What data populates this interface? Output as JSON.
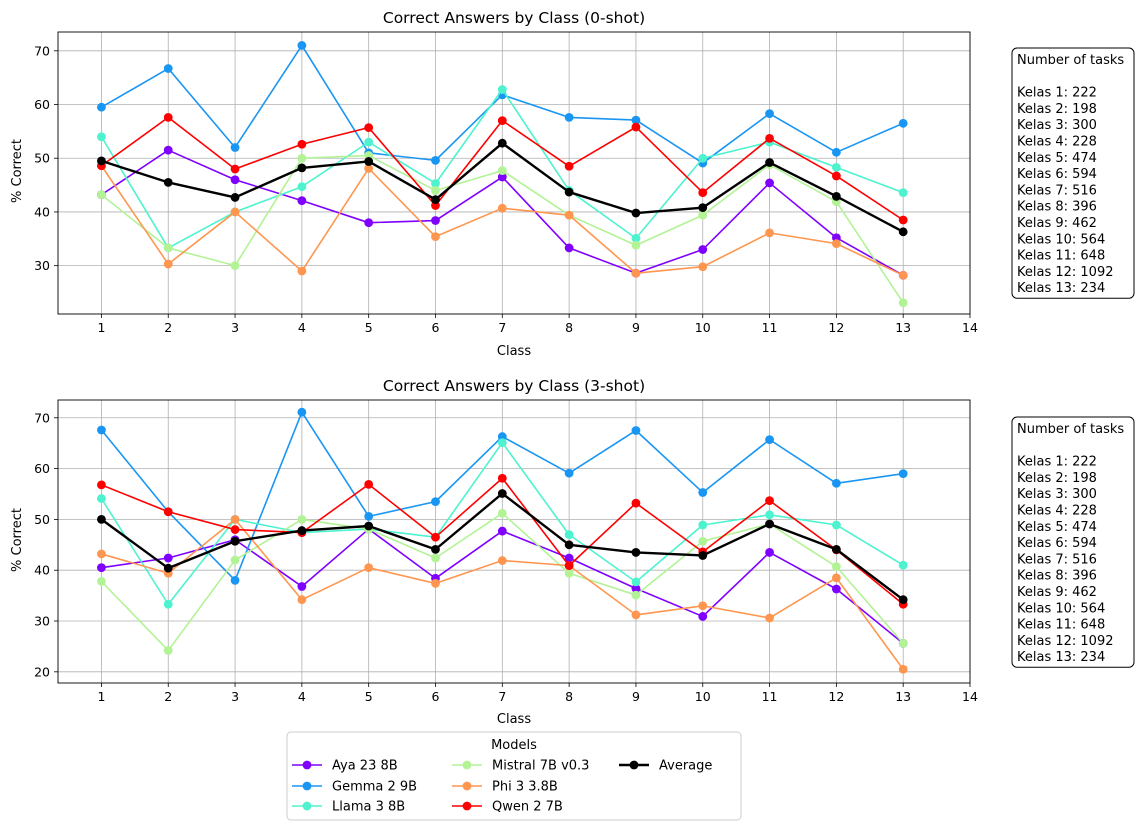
{
  "colors": {
    "Aya 23 8B": "#7f00ff",
    "Gemma 2 9B": "#1996f3",
    "Llama 3 8B": "#4df3ce",
    "Mistral 7B v0.3": "#b2f396",
    "Phi 3 3.8B": "#ff964f",
    "Qwen 2 7B": "#ff0000",
    "Average": "#000000"
  },
  "legend": {
    "title": "Models",
    "entries": [
      "Aya 23 8B",
      "Gemma 2 9B",
      "Llama 3 8B",
      "Mistral 7B v0.3",
      "Phi 3 3.8B",
      "Qwen 2 7B",
      "Average"
    ]
  },
  "task_counts": {
    "title": "Number of tasks",
    "lines": [
      "Kelas 1: 222",
      "Kelas 2: 198",
      "Kelas 3: 300",
      "Kelas 4: 228",
      "Kelas 5: 474",
      "Kelas 6: 594",
      "Kelas 7: 516",
      "Kelas 8: 396",
      "Kelas 9: 462",
      "Kelas 10: 564",
      "Kelas 11: 648",
      "Kelas 12: 1092",
      "Kelas 13: 234"
    ]
  },
  "chart_data": [
    {
      "type": "line",
      "title": "Correct Answers by Class (0-shot)",
      "xlabel": "Class",
      "ylabel": "% Correct",
      "x": [
        1,
        2,
        3,
        4,
        5,
        6,
        7,
        8,
        9,
        10,
        11,
        12,
        13
      ],
      "xticks": [
        1,
        2,
        3,
        4,
        5,
        6,
        7,
        8,
        9,
        10,
        11,
        12,
        13,
        14
      ],
      "xlim": [
        0.35,
        14
      ],
      "yticks": [
        30,
        40,
        50,
        60,
        70
      ],
      "ylim": [
        21,
        73.5
      ],
      "grid": true,
      "series": [
        {
          "name": "Aya 23 8B",
          "values": [
            43.2,
            51.5,
            46.0,
            42.1,
            38.0,
            38.4,
            46.5,
            33.3,
            28.6,
            33.0,
            45.4,
            35.2,
            28.2
          ]
        },
        {
          "name": "Gemma 2 9B",
          "values": [
            59.5,
            66.7,
            52.0,
            71.0,
            51.0,
            49.6,
            61.8,
            57.6,
            57.1,
            49.1,
            58.3,
            51.1,
            56.5
          ]
        },
        {
          "name": "Llama 3 8B",
          "values": [
            54.0,
            33.3,
            40.0,
            44.7,
            53.0,
            45.3,
            62.8,
            44.0,
            35.1,
            50.0,
            53.0,
            48.3,
            43.6
          ]
        },
        {
          "name": "Mistral 7B v0.3",
          "values": [
            43.2,
            33.3,
            30.0,
            50.0,
            50.5,
            44.0,
            47.7,
            39.4,
            33.8,
            39.4,
            48.8,
            41.9,
            23.1
          ]
        },
        {
          "name": "Phi 3 3.8B",
          "values": [
            48.6,
            30.3,
            40.0,
            29.0,
            48.1,
            35.4,
            40.7,
            39.4,
            28.6,
            29.8,
            36.1,
            34.1,
            28.2
          ]
        },
        {
          "name": "Qwen 2 7B",
          "values": [
            48.6,
            57.6,
            48.0,
            52.6,
            55.7,
            41.2,
            57.0,
            48.5,
            55.8,
            43.6,
            53.7,
            46.7,
            38.5
          ]
        },
        {
          "name": "Average",
          "values": [
            49.5,
            45.5,
            42.7,
            48.2,
            49.4,
            42.3,
            52.8,
            43.7,
            39.8,
            40.8,
            49.2,
            42.9,
            36.3
          ]
        }
      ]
    },
    {
      "type": "line",
      "title": "Correct Answers by Class (3-shot)",
      "xlabel": "Class",
      "ylabel": "% Correct",
      "x": [
        1,
        2,
        3,
        4,
        5,
        6,
        7,
        8,
        9,
        10,
        11,
        12,
        13
      ],
      "xticks": [
        1,
        2,
        3,
        4,
        5,
        6,
        7,
        8,
        9,
        10,
        11,
        12,
        13,
        14
      ],
      "xlim": [
        0.35,
        14
      ],
      "yticks": [
        20,
        30,
        40,
        50,
        60,
        70
      ],
      "ylim": [
        17.8,
        73.5
      ],
      "grid": true,
      "series": [
        {
          "name": "Aya 23 8B",
          "values": [
            40.5,
            42.4,
            46.0,
            36.8,
            48.1,
            38.4,
            47.7,
            42.4,
            36.4,
            30.9,
            43.5,
            36.3,
            25.6
          ]
        },
        {
          "name": "Gemma 2 9B",
          "values": [
            67.6,
            51.5,
            38.0,
            71.1,
            50.6,
            53.5,
            66.3,
            59.1,
            67.5,
            55.3,
            65.7,
            57.1,
            59.0
          ]
        },
        {
          "name": "Llama 3 8B",
          "values": [
            54.1,
            33.3,
            50.0,
            47.4,
            48.1,
            46.5,
            65.1,
            47.0,
            37.7,
            48.9,
            50.9,
            48.9,
            41.0
          ]
        },
        {
          "name": "Mistral 7B v0.3",
          "values": [
            37.8,
            24.2,
            42.0,
            50.0,
            48.1,
            42.4,
            51.2,
            39.4,
            35.1,
            45.7,
            49.1,
            40.7,
            25.6
          ]
        },
        {
          "name": "Phi 3 3.8B",
          "values": [
            43.2,
            39.4,
            50.0,
            34.2,
            40.5,
            37.4,
            41.9,
            40.9,
            31.2,
            33.0,
            30.6,
            38.5,
            20.5
          ]
        },
        {
          "name": "Qwen 2 7B",
          "values": [
            56.8,
            51.5,
            48.0,
            47.4,
            56.9,
            46.5,
            58.1,
            40.9,
            53.2,
            43.6,
            53.7,
            44.0,
            33.3
          ]
        },
        {
          "name": "Average",
          "values": [
            50.0,
            40.4,
            45.7,
            47.8,
            48.7,
            44.1,
            55.1,
            45.0,
            43.5,
            42.9,
            49.1,
            44.1,
            34.2
          ]
        }
      ]
    }
  ]
}
